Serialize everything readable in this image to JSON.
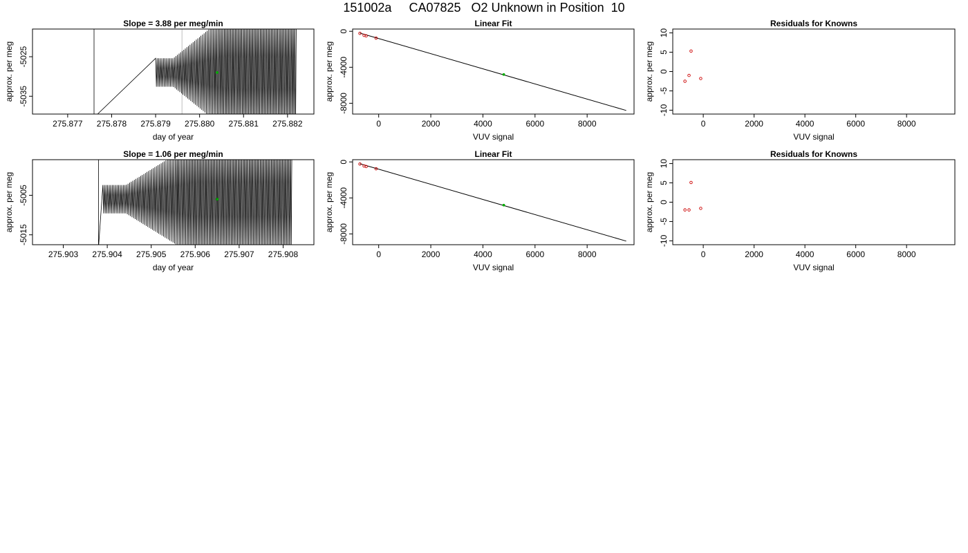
{
  "page_title": "151002a     CA07825   O2 Unknown in Position  10",
  "colors": {
    "known_point": "#cc0000",
    "unknown_point": "#00aa00",
    "trace": "#000000",
    "guide": "#bdbdbd"
  },
  "chart_data": [
    {
      "type": "line",
      "title": "Slope =  3.88  per meg/min",
      "xlabel": "day of year",
      "ylabel": "approx. per meg",
      "xlim": [
        275.8762,
        275.8826
      ],
      "ylim": [
        -5039.5,
        -5018
      ],
      "xticks": [
        275.877,
        275.878,
        275.879,
        275.88,
        275.881,
        275.882
      ],
      "xtick_labels": [
        "275.877",
        "275.878",
        "275.879",
        "275.880",
        "275.881",
        "275.882"
      ],
      "yticks": [
        -5025,
        -5035
      ],
      "ytick_labels": [
        "-5025",
        "-5035"
      ],
      "guide_x": 275.8796,
      "trace": {
        "spike_x": 275.8776,
        "start": 275.879,
        "ramp_end": 275.8806,
        "end": 275.8822,
        "center": -5029,
        "amplitude": 9,
        "cycles": 90
      },
      "unknown_point": {
        "x": 275.8804,
        "y": -5029
      }
    },
    {
      "type": "scatter",
      "title": "Linear Fit",
      "xlabel": "VUV signal",
      "ylabel": "approx. per meg",
      "xlim": [
        -1000,
        9800
      ],
      "ylim": [
        -9200,
        250
      ],
      "xticks": [
        0,
        2000,
        4000,
        6000,
        8000
      ],
      "xtick_labels": [
        "0",
        "2000",
        "4000",
        "6000",
        "8000"
      ],
      "yticks": [
        0,
        -4000,
        -8000
      ],
      "ytick_labels": [
        "0",
        "-4000",
        "-8000"
      ],
      "fit_line": {
        "x0": -720,
        "y0": -200,
        "x1": 9500,
        "y1": -8800
      },
      "known_points": [
        {
          "x": -720,
          "y": -230
        },
        {
          "x": -560,
          "y": -450
        },
        {
          "x": -480,
          "y": -510
        },
        {
          "x": -100,
          "y": -760
        }
      ],
      "unknown_point": {
        "x": 4800,
        "y": -4800
      }
    },
    {
      "type": "scatter",
      "title": "Residuals for Knowns",
      "xlabel": "VUV signal",
      "ylabel": "approx. per meg",
      "xlim": [
        -1200,
        9900
      ],
      "ylim": [
        -11,
        11
      ],
      "xticks": [
        0,
        2000,
        4000,
        6000,
        8000
      ],
      "xtick_labels": [
        "0",
        "2000",
        "4000",
        "6000",
        "8000"
      ],
      "yticks": [
        10,
        5,
        0,
        -5,
        -10
      ],
      "ytick_labels": [
        "10",
        "5",
        "0",
        "-5",
        "-10"
      ],
      "known_points": [
        {
          "x": -720,
          "y": -2.5
        },
        {
          "x": -560,
          "y": -1
        },
        {
          "x": -480,
          "y": 5.3
        },
        {
          "x": -100,
          "y": -1.8
        }
      ]
    },
    {
      "type": "line",
      "title": "Slope =  1.06  per meg/min",
      "xlabel": "day of year",
      "ylabel": "approx. per meg",
      "xlim": [
        275.9023,
        275.9087
      ],
      "ylim": [
        -5017.5,
        -4996
      ],
      "xticks": [
        275.903,
        275.904,
        275.905,
        275.906,
        275.907,
        275.908
      ],
      "xtick_labels": [
        "275.903",
        "275.904",
        "275.905",
        "275.906",
        "275.907",
        "275.908"
      ],
      "yticks": [
        -5005,
        -5015
      ],
      "ytick_labels": [
        "-5005",
        "-5015"
      ],
      "guide_x": 275.9056,
      "trace": {
        "spike_x": 275.9038,
        "start": 275.9039,
        "ramp_end": 275.906,
        "end": 275.9082,
        "center": -5006,
        "amplitude": 9,
        "cycles": 120
      },
      "unknown_point": {
        "x": 275.9065,
        "y": -5006
      }
    },
    {
      "type": "scatter",
      "title": "Linear Fit",
      "xlabel": "VUV signal",
      "ylabel": "approx. per meg",
      "xlim": [
        -1000,
        9800
      ],
      "ylim": [
        -9200,
        250
      ],
      "xticks": [
        0,
        2000,
        4000,
        6000,
        8000
      ],
      "xtick_labels": [
        "0",
        "2000",
        "4000",
        "6000",
        "8000"
      ],
      "yticks": [
        0,
        -4000,
        -8000
      ],
      "ytick_labels": [
        "0",
        "-4000",
        "-8000"
      ],
      "fit_line": {
        "x0": -720,
        "y0": -200,
        "x1": 9500,
        "y1": -8800
      },
      "known_points": [
        {
          "x": -720,
          "y": -230
        },
        {
          "x": -560,
          "y": -450
        },
        {
          "x": -480,
          "y": -510
        },
        {
          "x": -100,
          "y": -760
        }
      ],
      "unknown_point": {
        "x": 4800,
        "y": -4800
      }
    },
    {
      "type": "scatter",
      "title": "Residuals for Knowns",
      "xlabel": "VUV signal",
      "ylabel": "approx. per meg",
      "xlim": [
        -1200,
        9900
      ],
      "ylim": [
        -11,
        11
      ],
      "xticks": [
        0,
        2000,
        4000,
        6000,
        8000
      ],
      "xtick_labels": [
        "0",
        "2000",
        "4000",
        "6000",
        "8000"
      ],
      "yticks": [
        10,
        5,
        0,
        -5,
        -10
      ],
      "ytick_labels": [
        "10",
        "5",
        "0",
        "-5",
        "-10"
      ],
      "known_points": [
        {
          "x": -720,
          "y": -2
        },
        {
          "x": -560,
          "y": -2
        },
        {
          "x": -480,
          "y": 5.1
        },
        {
          "x": -100,
          "y": -1.6
        }
      ]
    }
  ]
}
